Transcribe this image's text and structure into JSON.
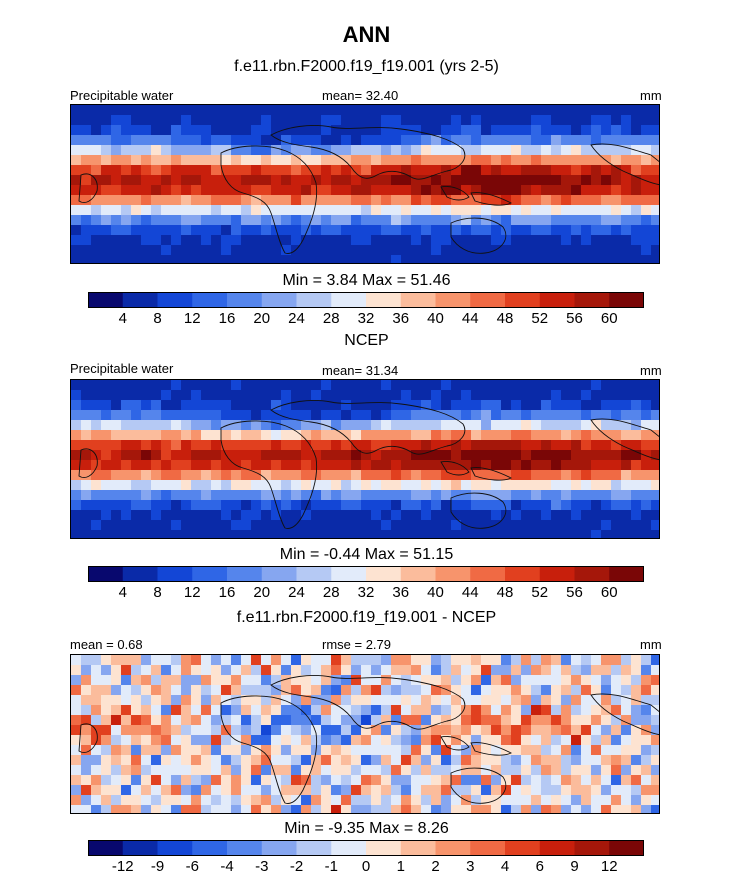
{
  "header": {
    "title": "ANN"
  },
  "colors": {
    "blue_scale": [
      "#08086e",
      "#0a2aa8",
      "#1346d6",
      "#2f66e6",
      "#5585ec",
      "#86a6f0",
      "#b5c9f4",
      "#e2ebfa"
    ],
    "red_scale": [
      "#fde3d1",
      "#fbbc9c",
      "#f7946c",
      "#f06a44",
      "#e1401f",
      "#c81f0c",
      "#a5170a",
      "#7a0606"
    ],
    "white": "#ffffff"
  },
  "panels": [
    {
      "title": "f.e11.rbn.F2000.f19_f19.001 (yrs 2-5)",
      "left_label": "Precipitable water",
      "center_label": "mean=  32.40",
      "right_label": "mm",
      "minmax": "Min =   3.84 Max =  51.46",
      "colorbar_labels": [
        "4",
        "8",
        "12",
        "16",
        "20",
        "24",
        "28",
        "32",
        "36",
        "40",
        "44",
        "48",
        "52",
        "56",
        "60"
      ]
    },
    {
      "title": "NCEP",
      "left_label": "Precipitable water",
      "center_label": "mean=  31.34",
      "right_label": "mm",
      "minmax": "Min =  -0.44 Max =  51.15",
      "colorbar_labels": [
        "4",
        "8",
        "12",
        "16",
        "20",
        "24",
        "28",
        "32",
        "36",
        "40",
        "44",
        "48",
        "52",
        "56",
        "60"
      ]
    },
    {
      "title": "f.e11.rbn.F2000.f19_f19.001 - NCEP",
      "left_label": "mean =   0.68",
      "center_label": "rmse =   2.79",
      "right_label": "mm",
      "minmax": "Min =  -9.35 Max =   8.26",
      "colorbar_labels": [
        "-12",
        "-9",
        "-6",
        "-4",
        "-3",
        "-2",
        "-1",
        "0",
        "1",
        "2",
        "3",
        "4",
        "6",
        "9",
        "12"
      ]
    }
  ],
  "chart_data": [
    {
      "type": "heatmap",
      "title": "f.e11.rbn.F2000.f19_f19.001 (yrs 2-5)",
      "variable": "Precipitable water",
      "units": "mm",
      "mean": 32.4,
      "min": 3.84,
      "max": 51.46,
      "levels": [
        4,
        8,
        12,
        16,
        20,
        24,
        28,
        32,
        36,
        40,
        44,
        48,
        52,
        56,
        60
      ],
      "pattern": "tropical_max"
    },
    {
      "type": "heatmap",
      "title": "NCEP",
      "variable": "Precipitable water",
      "units": "mm",
      "mean": 31.34,
      "min": -0.44,
      "max": 51.15,
      "levels": [
        4,
        8,
        12,
        16,
        20,
        24,
        28,
        32,
        36,
        40,
        44,
        48,
        52,
        56,
        60
      ],
      "pattern": "tropical_max"
    },
    {
      "type": "heatmap",
      "title": "f.e11.rbn.F2000.f19_f19.001 - NCEP",
      "units": "mm",
      "mean": 0.68,
      "rmse": 2.79,
      "min": -9.35,
      "max": 8.26,
      "levels": [
        -12,
        -9,
        -6,
        -4,
        -3,
        -2,
        -1,
        0,
        1,
        2,
        3,
        4,
        6,
        9,
        12
      ],
      "pattern": "difference"
    }
  ]
}
